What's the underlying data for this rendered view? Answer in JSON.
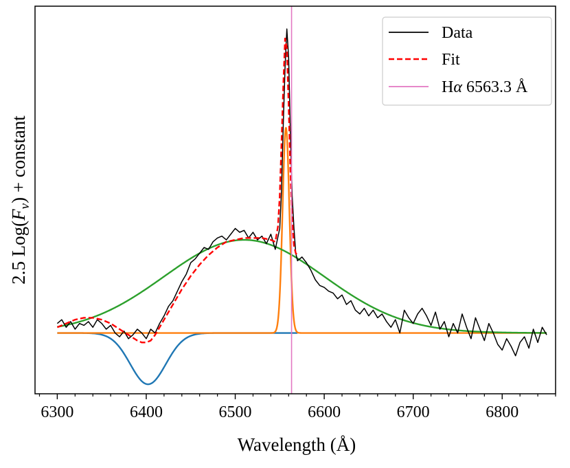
{
  "chart_data": {
    "type": "line",
    "title": "",
    "xlabel": "Wavelength (Å)",
    "ylabel_parts": {
      "prefix": "2.5 Log(",
      "var": "F",
      "sub": "ν",
      "suffix": ") + constant"
    },
    "ylabel": "2.5 Log(Fν) + constant",
    "xlim": [
      6275,
      6860
    ],
    "ylim": [
      -0.32,
      1.72
    ],
    "xticks": [
      6300,
      6400,
      6500,
      6600,
      6700,
      6800
    ],
    "xtick_labels": [
      "6300",
      "6400",
      "6500",
      "6600",
      "6700",
      "6800"
    ],
    "x_minor_step": 20,
    "y_tick_labels_shown": false,
    "legend": {
      "placement": "top-right",
      "entries": [
        {
          "key": "data",
          "label": "Data",
          "color": "#000000",
          "dash": "solid"
        },
        {
          "key": "fit",
          "label": "Fit",
          "color": "#ff0000",
          "dash": "dashed"
        },
        {
          "key": "halpha",
          "label_prefix": "H",
          "label_greek": "α",
          "label_suffix": " 6563.3 Å",
          "label": "Hα 6563.3 Å",
          "color": "#e377c2",
          "dash": "solid"
        }
      ]
    },
    "reference_line": {
      "name": "Hα 6563.3 Å",
      "x": 6563.3,
      "color": "#e377c2"
    },
    "components": [
      {
        "name": "Absorption Gaussian",
        "color": "#1f77b4",
        "model": "gaussian",
        "center": 6402,
        "amplitude": -0.27,
        "sigma": 20,
        "baseline": 0,
        "x_range": [
          6300,
          6570
        ]
      },
      {
        "name": "Narrow emission Gaussian",
        "color": "#ff7f0e",
        "model": "gaussian",
        "center": 6557,
        "amplitude": 1.08,
        "sigma": 3.8,
        "baseline": 0,
        "x_range": [
          6300,
          6850
        ]
      },
      {
        "name": "Broad emission Gaussian",
        "color": "#2ca02c",
        "model": "gaussian",
        "center": 6510,
        "amplitude": 0.49,
        "sigma": 90,
        "baseline": 0,
        "x_range": [
          6300,
          6850
        ]
      }
    ],
    "series": [
      {
        "name": "Data",
        "color": "#000000",
        "x": [
          6300,
          6305,
          6310,
          6315,
          6320,
          6325,
          6330,
          6335,
          6340,
          6345,
          6350,
          6355,
          6360,
          6365,
          6370,
          6375,
          6380,
          6385,
          6390,
          6395,
          6400,
          6405,
          6410,
          6415,
          6420,
          6425,
          6430,
          6435,
          6440,
          6445,
          6450,
          6455,
          6460,
          6465,
          6470,
          6475,
          6480,
          6485,
          6490,
          6495,
          6500,
          6505,
          6510,
          6515,
          6520,
          6525,
          6530,
          6535,
          6540,
          6545,
          6550,
          6552,
          6554,
          6556,
          6558,
          6560,
          6562,
          6564,
          6566,
          6568,
          6570,
          6575,
          6580,
          6585,
          6590,
          6595,
          6600,
          6605,
          6610,
          6615,
          6620,
          6625,
          6630,
          6635,
          6640,
          6645,
          6650,
          6655,
          6660,
          6665,
          6670,
          6675,
          6680,
          6685,
          6690,
          6695,
          6700,
          6705,
          6710,
          6715,
          6720,
          6725,
          6730,
          6735,
          6740,
          6745,
          6750,
          6755,
          6760,
          6765,
          6770,
          6775,
          6780,
          6785,
          6790,
          6795,
          6800,
          6805,
          6810,
          6815,
          6820,
          6825,
          6830,
          6835,
          6840,
          6845,
          6850
        ],
        "y": [
          0.05,
          0.07,
          0.03,
          0.06,
          0.02,
          0.05,
          0.04,
          0.06,
          0.03,
          0.07,
          0.05,
          0.02,
          0.04,
          0.0,
          -0.02,
          0.01,
          -0.03,
          -0.01,
          0.02,
          0.0,
          -0.03,
          0.02,
          0.0,
          0.05,
          0.09,
          0.14,
          0.17,
          0.22,
          0.27,
          0.31,
          0.37,
          0.39,
          0.42,
          0.45,
          0.44,
          0.48,
          0.5,
          0.51,
          0.49,
          0.52,
          0.55,
          0.53,
          0.54,
          0.5,
          0.53,
          0.49,
          0.51,
          0.47,
          0.52,
          0.44,
          0.55,
          0.75,
          1.1,
          1.4,
          1.6,
          1.45,
          1.05,
          0.72,
          0.55,
          0.42,
          0.38,
          0.4,
          0.37,
          0.33,
          0.28,
          0.25,
          0.24,
          0.22,
          0.21,
          0.18,
          0.2,
          0.15,
          0.17,
          0.12,
          0.1,
          0.13,
          0.09,
          0.12,
          0.08,
          0.1,
          0.06,
          0.03,
          0.07,
          0.0,
          0.12,
          0.08,
          0.05,
          0.1,
          0.13,
          0.09,
          0.04,
          0.11,
          0.02,
          0.06,
          -0.02,
          0.05,
          0.0,
          0.1,
          0.03,
          -0.03,
          0.08,
          0.02,
          -0.04,
          0.05,
          0.0,
          -0.06,
          -0.09,
          -0.03,
          -0.07,
          -0.12,
          -0.05,
          -0.02,
          -0.08,
          0.02,
          -0.05,
          0.03,
          -0.01
        ]
      },
      {
        "name": "Fit",
        "color": "#ff0000",
        "x": [
          6300,
          6310,
          6320,
          6330,
          6340,
          6350,
          6360,
          6370,
          6380,
          6390,
          6395,
          6400,
          6405,
          6410,
          6420,
          6430,
          6440,
          6450,
          6460,
          6470,
          6480,
          6490,
          6500,
          6510,
          6520,
          6530,
          6540,
          6545,
          6548,
          6550,
          6552,
          6554,
          6556,
          6558,
          6560,
          6562,
          6564,
          6566,
          6568,
          6570
        ],
        "y": [
          0.03,
          0.05,
          0.07,
          0.08,
          0.08,
          0.07,
          0.05,
          0.02,
          -0.01,
          -0.04,
          -0.05,
          -0.05,
          -0.04,
          -0.01,
          0.07,
          0.15,
          0.23,
          0.3,
          0.36,
          0.41,
          0.45,
          0.48,
          0.49,
          0.5,
          0.5,
          0.5,
          0.49,
          0.48,
          0.56,
          0.72,
          1.0,
          1.3,
          1.55,
          1.5,
          1.2,
          0.85,
          0.6,
          0.46,
          0.42,
          0.41
        ]
      }
    ]
  }
}
